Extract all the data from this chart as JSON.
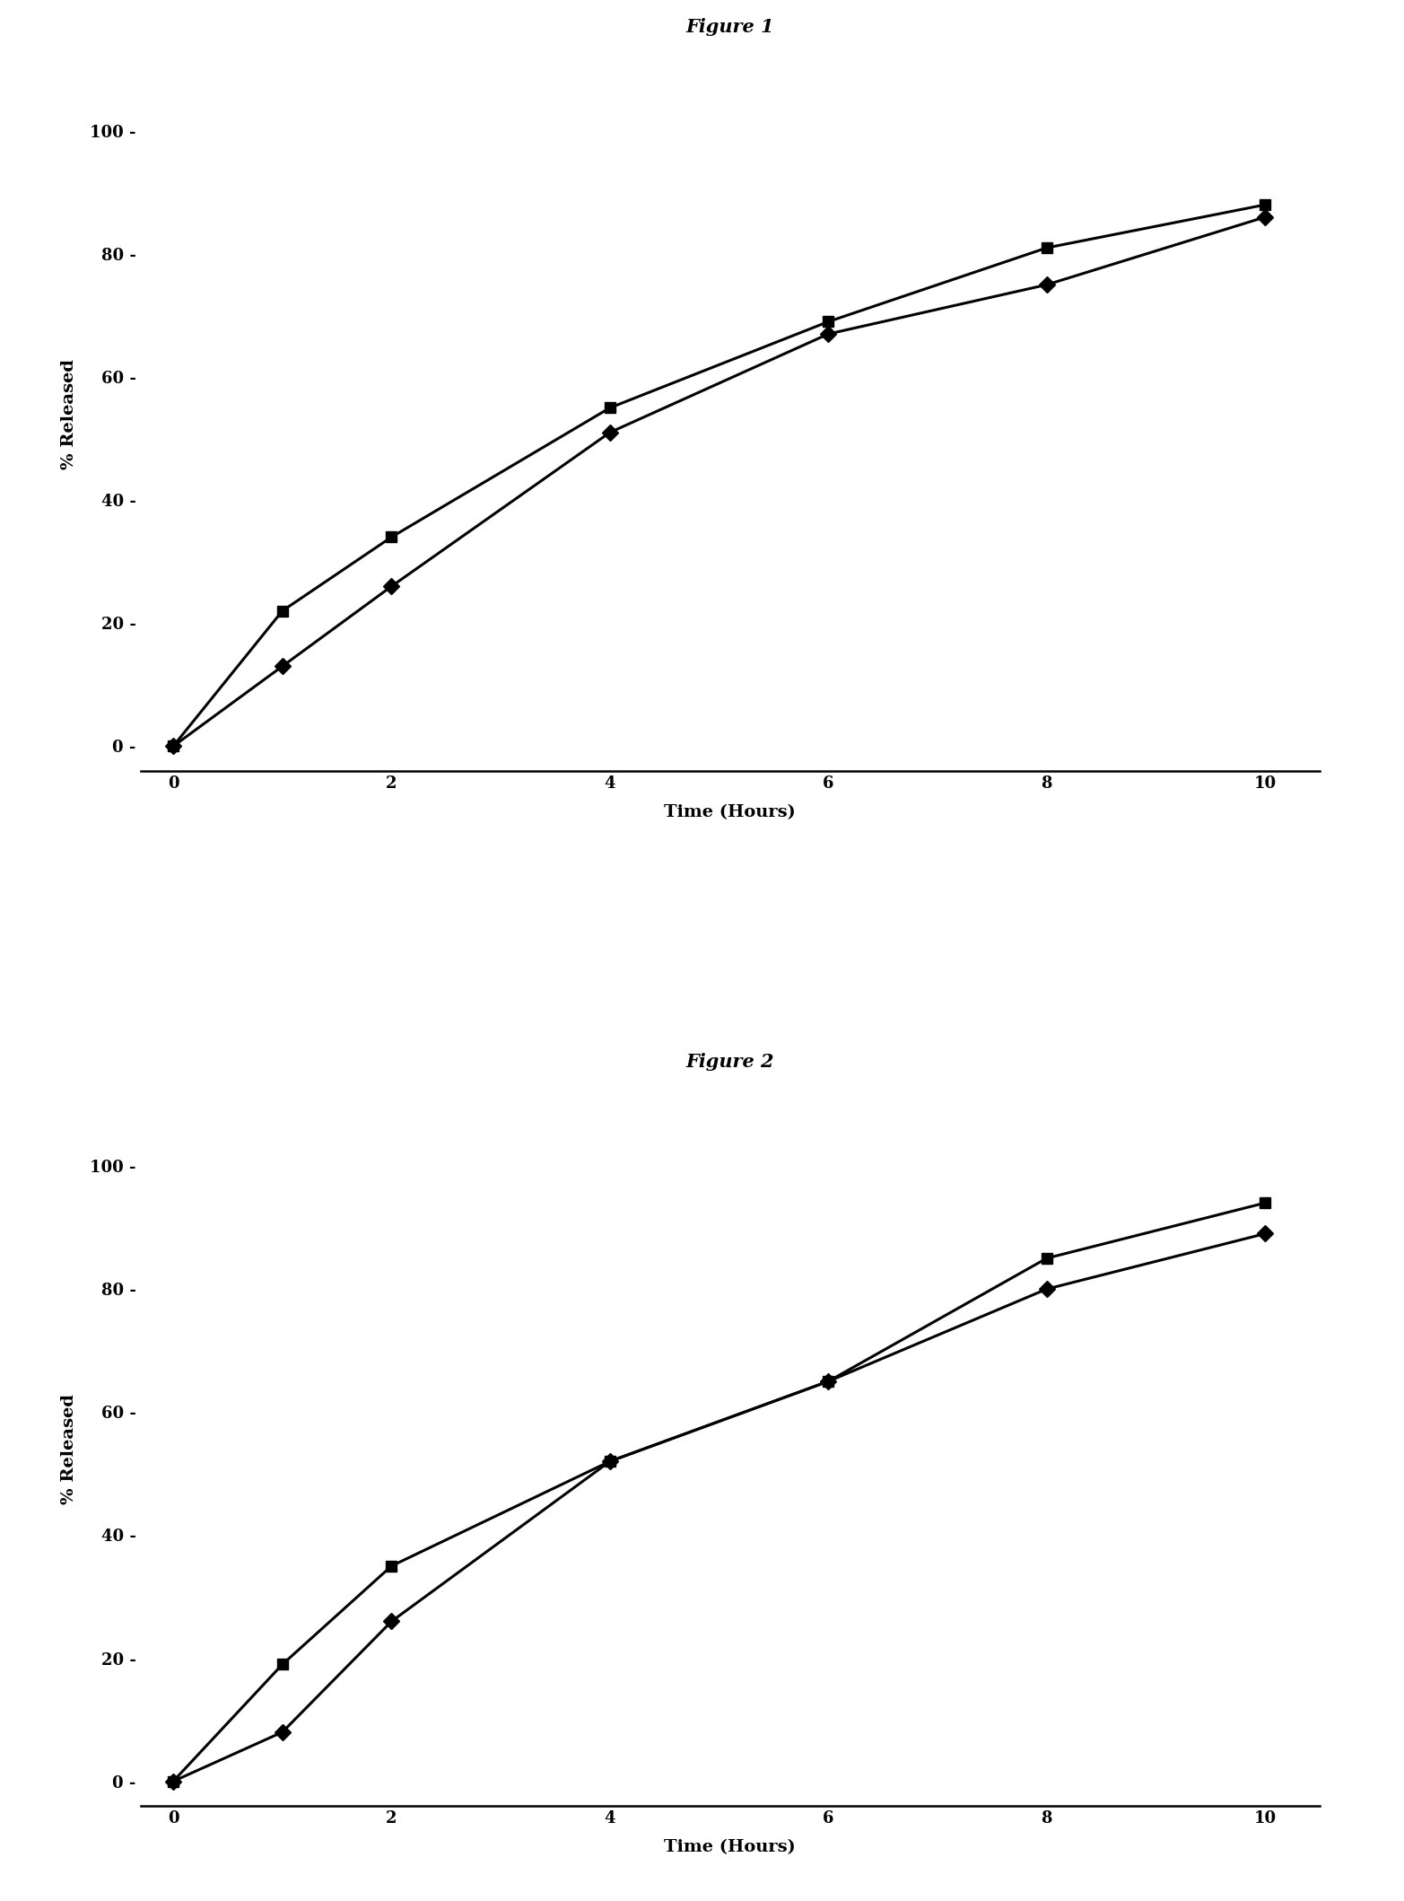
{
  "fig1_title": "Figure 1",
  "fig2_title": "Figure 2",
  "xlabel": "Time (Hours)",
  "ylabel": "% Released",
  "x_ticks": [
    0,
    2,
    4,
    6,
    8,
    10
  ],
  "xlim": [
    0,
    10.5
  ],
  "y_ticks": [
    0,
    20,
    40,
    60,
    80,
    100
  ],
  "fig1_series1_x": [
    0,
    1,
    2,
    4,
    6,
    8,
    10
  ],
  "fig1_series1_y": [
    0,
    22,
    34,
    55,
    69,
    81,
    88
  ],
  "fig1_series2_x": [
    0,
    1,
    2,
    4,
    6,
    8,
    10
  ],
  "fig1_series2_y": [
    0,
    13,
    26,
    51,
    67,
    75,
    86
  ],
  "fig2_series1_x": [
    0,
    1,
    2,
    4,
    6,
    8,
    10
  ],
  "fig2_series1_y": [
    0,
    19,
    35,
    52,
    65,
    85,
    94
  ],
  "fig2_series2_x": [
    0,
    1,
    2,
    4,
    6,
    8,
    10
  ],
  "fig2_series2_y": [
    0,
    8,
    26,
    52,
    65,
    80,
    89
  ],
  "line_color": "#000000",
  "marker_square": "s",
  "marker_diamond": "D",
  "marker_size": 9,
  "linewidth": 2.2,
  "title_fontsize": 15,
  "axis_label_fontsize": 14,
  "tick_fontsize": 13,
  "background_color": "#ffffff"
}
